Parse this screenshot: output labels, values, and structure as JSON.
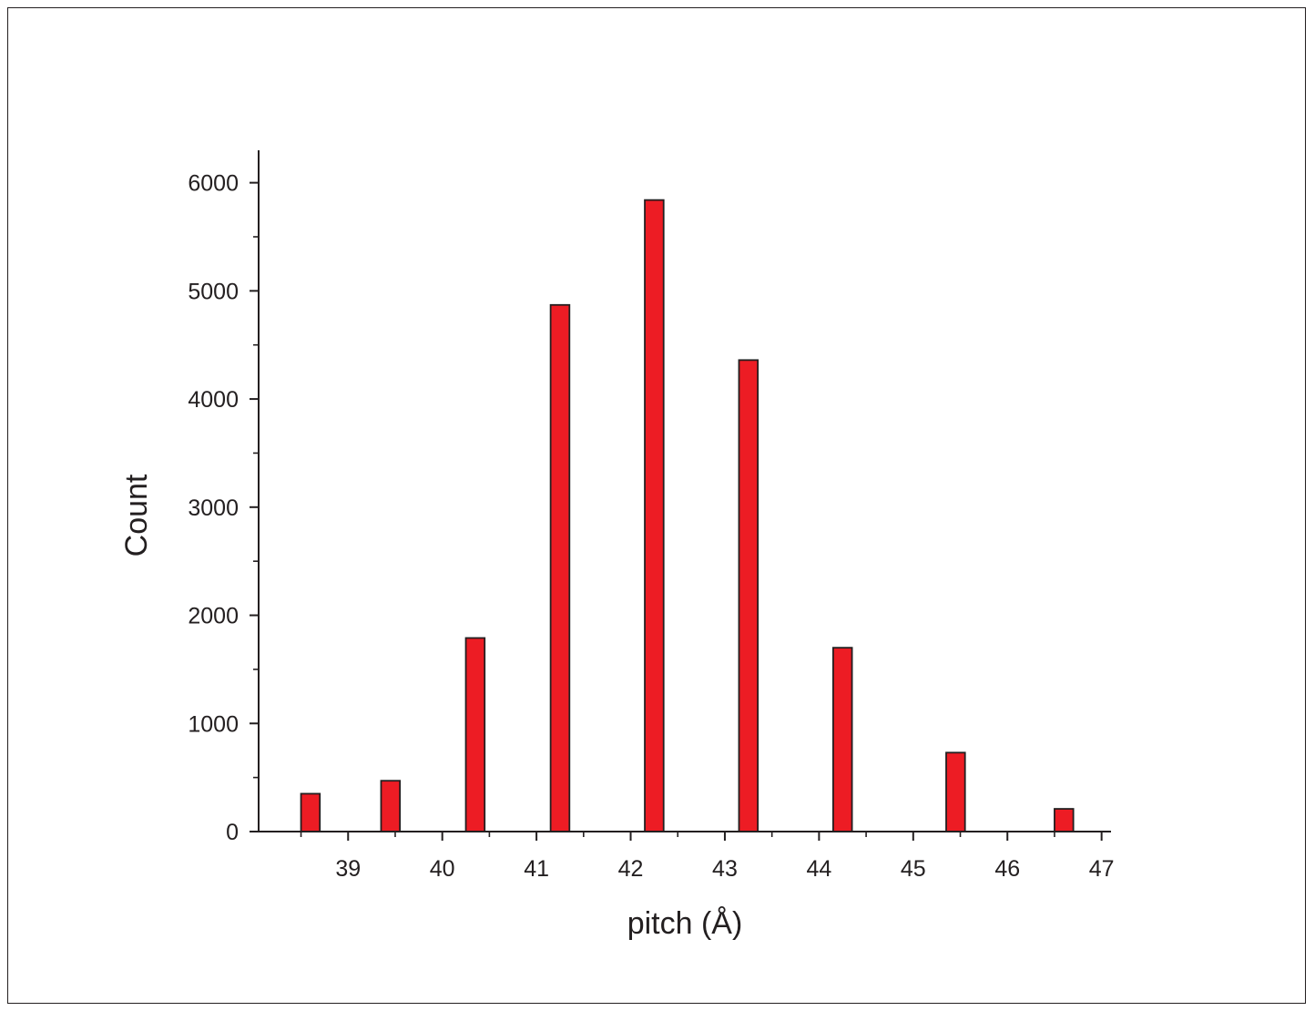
{
  "chart_data": {
    "type": "bar",
    "title": "",
    "xlabel": "pitch (Å)",
    "ylabel": "Count",
    "xlim": [
      38.05,
      47.1
    ],
    "ylim": [
      0,
      6300
    ],
    "x_ticks": [
      39,
      40,
      41,
      42,
      43,
      44,
      45,
      46,
      47
    ],
    "x_minor_ticks": [
      38.5,
      39.5,
      40.5,
      41.5,
      42.5,
      43.5,
      44.5,
      45.5,
      46.5
    ],
    "y_ticks": [
      0,
      1000,
      2000,
      3000,
      4000,
      5000,
      6000
    ],
    "y_minor_ticks": [
      500,
      1500,
      2500,
      3500,
      4500,
      5500
    ],
    "grid": false,
    "bar_width": 0.2,
    "bar_color": "#ed1c24",
    "series": [
      {
        "x": [
          38.6,
          39.45,
          40.35,
          41.25,
          42.25,
          43.25,
          44.25,
          45.45,
          46.6
        ],
        "values": [
          350,
          470,
          1790,
          4870,
          5840,
          4360,
          1700,
          730,
          210
        ]
      }
    ]
  }
}
